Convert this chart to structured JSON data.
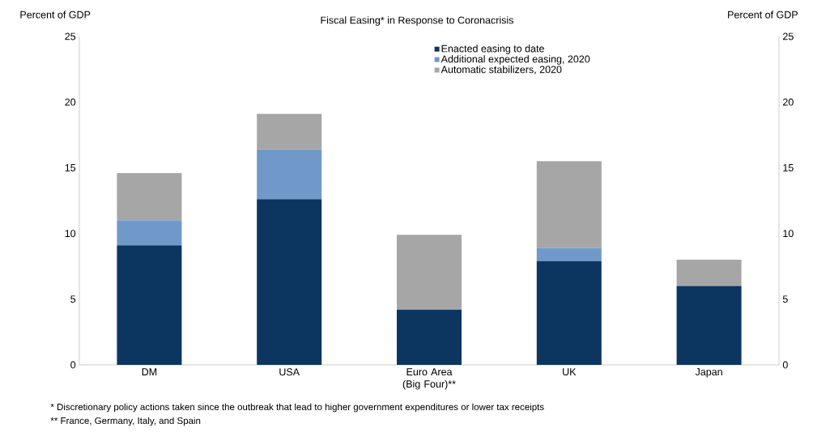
{
  "chart_data": {
    "type": "bar",
    "title": "Fiscal Easing* in Response to Coronacrisis",
    "ylabel": "Percent of GDP",
    "y2label": "Percent of GDP",
    "categories": [
      "DM",
      "USA",
      "Euro Area (Big Four)**",
      "UK",
      "Japan"
    ],
    "stacked": true,
    "series": [
      {
        "name": "Enacted easing to date",
        "color": "#0c3560",
        "values": [
          9.1,
          12.6,
          4.2,
          7.9,
          6.0
        ]
      },
      {
        "name": "Additional expected easing, 2020",
        "color": "#7099c9",
        "values": [
          1.9,
          3.8,
          0,
          1.0,
          0
        ]
      },
      {
        "name": "Automatic stabilizers, 2020",
        "color": "#a6a6a6",
        "values": [
          3.6,
          2.7,
          5.7,
          6.6,
          2.0
        ]
      }
    ],
    "ylim": [
      0,
      25
    ],
    "yticks": [
      0,
      5,
      10,
      15,
      20,
      25
    ],
    "y2lim": [
      0,
      25
    ],
    "y2ticks": [
      0,
      5,
      10,
      15,
      20,
      25
    ],
    "grid": false,
    "legend": "top",
    "annotations": [
      "* Discretionary policy actions taken since the outbreak that lead to higher government expenditures or lower tax receipts",
      "** France, Germany, Italy, and Spain"
    ]
  }
}
